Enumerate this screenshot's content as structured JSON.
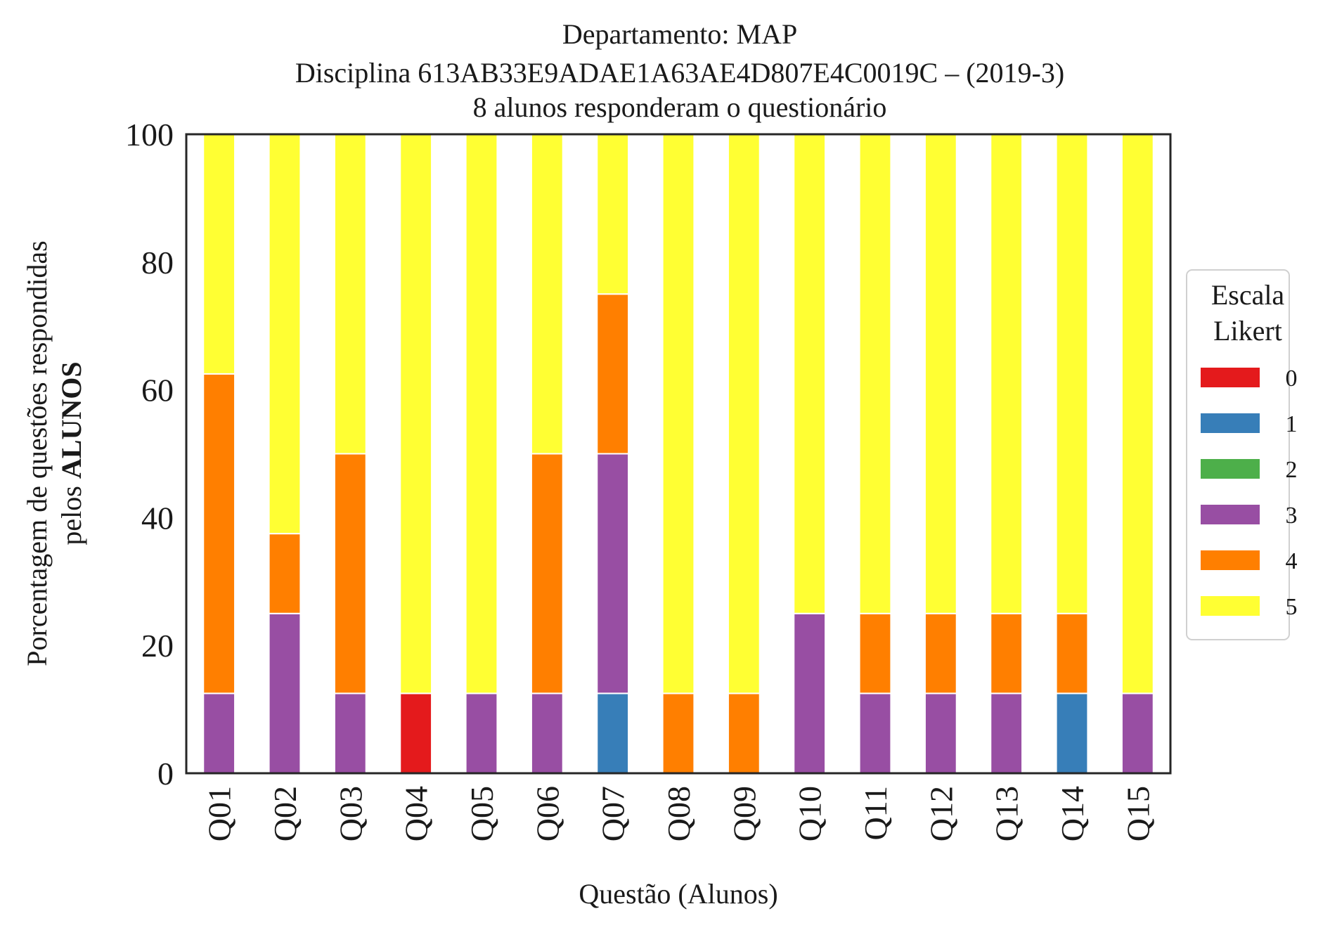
{
  "chart_data": {
    "type": "bar",
    "stacked": true,
    "title": [
      "Departamento: MAP",
      "Disciplina 613AB33E9ADAE1A63AE4D807E4C0019C – (2019-3)",
      "8 alunos responderam o questionário"
    ],
    "xlabel": "Questão (Alunos)",
    "ylabel_line1": "Porcentagem de questões respondidas",
    "ylabel_line2_prefix": "pelos ",
    "ylabel_line2_bold": "ALUNOS",
    "ylim": [
      0,
      100
    ],
    "yticks": [
      "0",
      "20",
      "40",
      "60",
      "80",
      "100"
    ],
    "grid": false,
    "legend_placement": "right",
    "legend_title": [
      "Escala",
      "Likert"
    ],
    "categories": [
      "Q01",
      "Q02",
      "Q03",
      "Q04",
      "Q05",
      "Q06",
      "Q07",
      "Q08",
      "Q09",
      "Q10",
      "Q11",
      "Q12",
      "Q13",
      "Q14",
      "Q15"
    ],
    "series": [
      {
        "name": "0",
        "color": "#e41a1c",
        "values": [
          0,
          0,
          0,
          12.5,
          0,
          0,
          0,
          0,
          0,
          0,
          0,
          0,
          0,
          0,
          0
        ]
      },
      {
        "name": "1",
        "color": "#377eb8",
        "values": [
          0,
          0,
          0,
          0,
          0,
          0,
          12.5,
          0,
          0,
          0,
          0,
          0,
          0,
          12.5,
          0
        ]
      },
      {
        "name": "2",
        "color": "#4daf4a",
        "values": [
          0,
          0,
          0,
          0,
          0,
          0,
          0,
          0,
          0,
          0,
          0,
          0,
          0,
          0,
          0
        ]
      },
      {
        "name": "3",
        "color": "#984ea3",
        "values": [
          12.5,
          25,
          12.5,
          0,
          12.5,
          12.5,
          37.5,
          0,
          0,
          25,
          12.5,
          12.5,
          12.5,
          0,
          12.5
        ]
      },
      {
        "name": "4",
        "color": "#ff7f00",
        "values": [
          50,
          12.5,
          37.5,
          0,
          0,
          37.5,
          25,
          12.5,
          12.5,
          0,
          12.5,
          12.5,
          12.5,
          12.5,
          0
        ]
      },
      {
        "name": "5",
        "color": "#ffff33",
        "values": [
          37.5,
          62.5,
          50,
          87.5,
          87.5,
          50,
          25,
          87.5,
          87.5,
          75,
          75,
          75,
          75,
          75,
          87.5
        ]
      }
    ]
  }
}
